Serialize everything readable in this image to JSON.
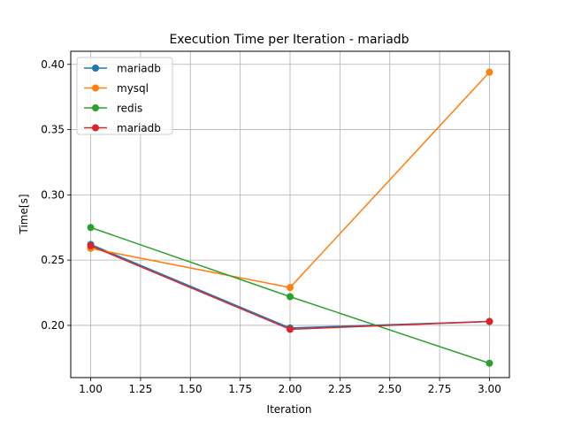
{
  "chart_data": {
    "type": "line",
    "title": "Execution Time per Iteration - mariadb",
    "xlabel": "Iteration",
    "ylabel": "Time[s]",
    "xlim": [
      0.9,
      3.1
    ],
    "ylim": [
      0.16,
      0.41
    ],
    "xticks": [
      1.0,
      1.25,
      1.5,
      1.75,
      2.0,
      2.25,
      2.5,
      2.75,
      3.0
    ],
    "xtick_labels": [
      "1.00",
      "1.25",
      "1.50",
      "1.75",
      "2.00",
      "2.25",
      "2.50",
      "2.75",
      "3.00"
    ],
    "yticks": [
      0.2,
      0.25,
      0.3,
      0.35,
      0.4
    ],
    "ytick_labels": [
      "0.20",
      "0.25",
      "0.30",
      "0.35",
      "0.40"
    ],
    "grid": true,
    "legend_position": "upper-left",
    "x": [
      1,
      2,
      3
    ],
    "series": [
      {
        "name": "mariadb",
        "color": "#1f77b4",
        "values": [
          0.262,
          0.198,
          0.203
        ]
      },
      {
        "name": "mysql",
        "color": "#ff7f0e",
        "values": [
          0.259,
          0.229,
          0.394
        ]
      },
      {
        "name": "redis",
        "color": "#2ca02c",
        "values": [
          0.275,
          0.222,
          0.171
        ]
      },
      {
        "name": "mariadb",
        "color": "#d62728",
        "values": [
          0.261,
          0.197,
          0.203
        ]
      }
    ]
  }
}
